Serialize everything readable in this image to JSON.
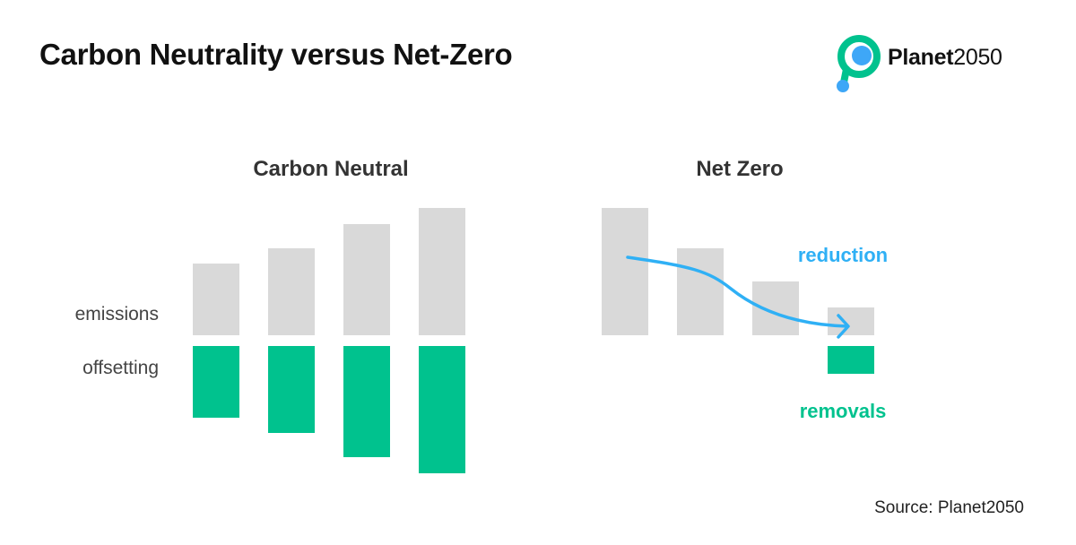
{
  "header": {
    "title": "Carbon Neutrality versus Net-Zero"
  },
  "logo": {
    "brand_word": "Planet",
    "brand_number": "2050",
    "icon": "planet2050-logo-icon",
    "colors": {
      "ring": "#00c28e",
      "dot": "#3ea7f7"
    }
  },
  "chart_data": [
    {
      "type": "bar",
      "title": "Carbon Neutral",
      "row_labels": [
        "emissions",
        "offsetting"
      ],
      "categories": [
        "",
        "",
        "",
        ""
      ],
      "series": [
        {
          "name": "emissions",
          "values": [
            80,
            97,
            124,
            142
          ],
          "color": "#d9d9d9"
        },
        {
          "name": "offsetting",
          "values": [
            -80,
            -97,
            -124,
            -142
          ],
          "color": "#00c28e"
        }
      ]
    },
    {
      "type": "bar",
      "title": "Net Zero",
      "categories": [
        "",
        "",
        "",
        ""
      ],
      "series": [
        {
          "name": "emissions",
          "values": [
            142,
            97,
            60,
            31
          ],
          "color": "#d9d9d9"
        },
        {
          "name": "removals",
          "values": [
            null,
            null,
            null,
            -31
          ],
          "color": "#00c28e"
        }
      ],
      "annotations": [
        {
          "text": "reduction",
          "color": "#2fb0f5"
        },
        {
          "text": "removals",
          "color": "#00c28e"
        }
      ]
    }
  ],
  "footer": {
    "source": "Source: Planet2050"
  }
}
